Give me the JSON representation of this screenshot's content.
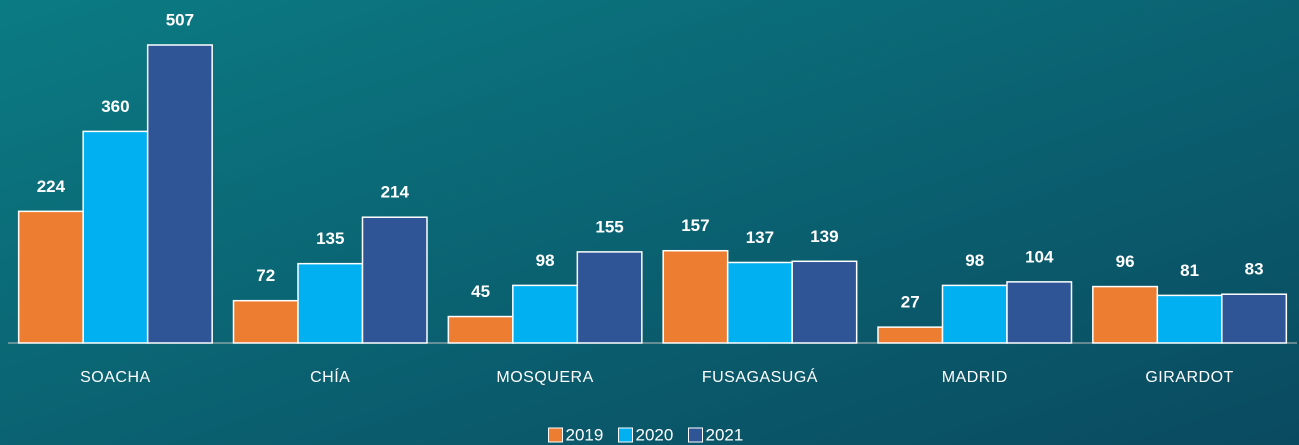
{
  "chart_data": {
    "type": "bar",
    "categories": [
      "SOACHA",
      "CHÍA",
      "MOSQUERA",
      "FUSAGASUGÁ",
      "MADRID",
      "GIRARDOT"
    ],
    "series": [
      {
        "name": "2019",
        "color": "#ed7d31",
        "values": [
          224,
          72,
          45,
          157,
          27,
          96
        ]
      },
      {
        "name": "2020",
        "color": "#00b0f0",
        "values": [
          360,
          135,
          98,
          137,
          98,
          81
        ]
      },
      {
        "name": "2021",
        "color": "#2f5597",
        "values": [
          507,
          214,
          155,
          139,
          104,
          83
        ]
      }
    ],
    "legend": "bottom"
  }
}
